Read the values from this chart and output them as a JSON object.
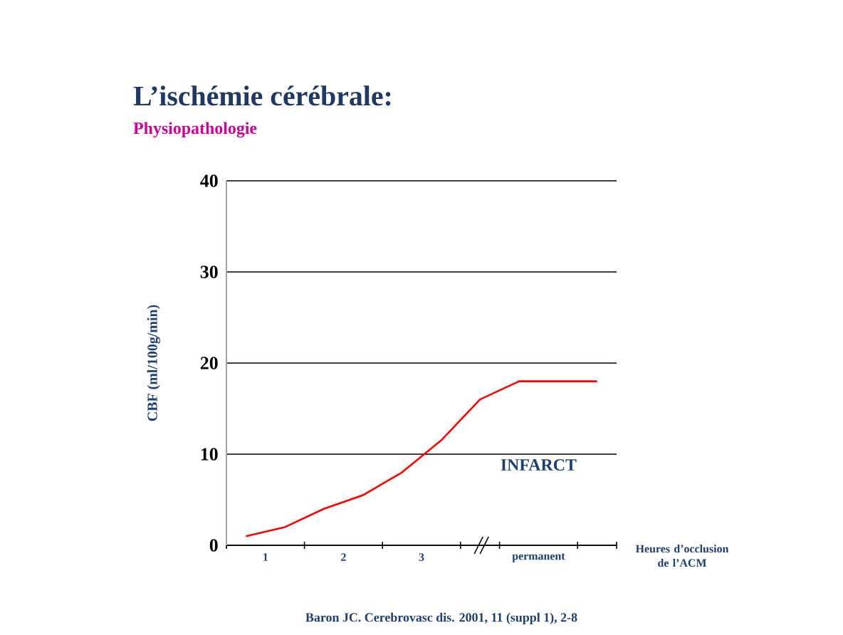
{
  "chart_data": {
    "type": "line",
    "title": "L’ischémie cérébrale:",
    "subtitle": "Physiopathologie",
    "ylabel": "CBF (ml/100g/min)",
    "xlabel": "Heures d’occlusion de l’ACM",
    "x": [
      0.75,
      1.25,
      1.75,
      2.25,
      2.75,
      3.25,
      3.75,
      4.25,
      4.75,
      5.25
    ],
    "series": [
      {
        "color": "#ff0000",
        "values": [
          1,
          2,
          4,
          5.5,
          8,
          11.5,
          16,
          18,
          18,
          18
        ]
      }
    ],
    "xlim": [
      0.5,
      5.5
    ],
    "xticks": [
      {
        "value": 0.5,
        "label": null
      },
      1,
      {
        "value": 1.5,
        "label": null
      },
      2,
      {
        "value": 2.5,
        "label": null
      },
      3,
      {
        "value": 3.5,
        "label": null
      },
      {
        "value": 4,
        "label": null
      },
      {
        "value": 4.5,
        "label": "permanent"
      },
      {
        "value": 5,
        "label": null
      },
      {
        "value": 5.5,
        "label": null
      }
    ],
    "ylim": [
      0,
      40
    ],
    "yticks": [
      0,
      10,
      20,
      30,
      40
    ],
    "grid": "y",
    "annotations": [
      "INFARCT",
      "Baron JC.  Cerebrovasc dis. 2001, 11 (suppl 1), 2-8"
    ]
  }
}
